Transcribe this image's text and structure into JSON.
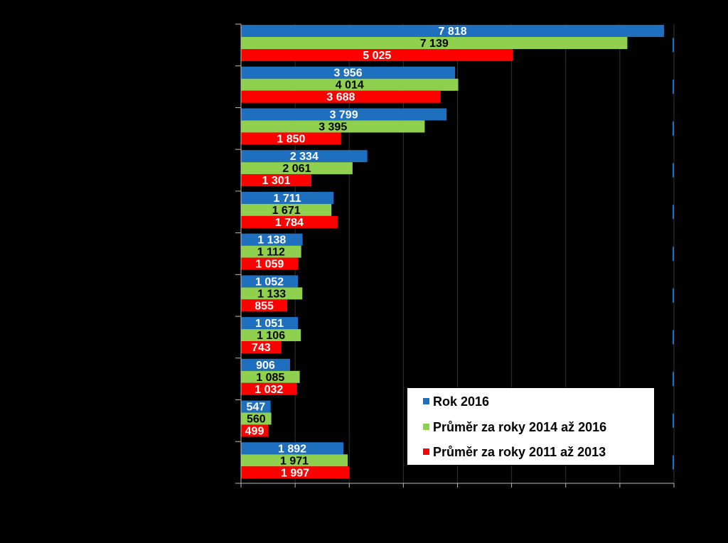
{
  "chart_data": {
    "type": "bar",
    "orientation": "horizontal",
    "categories": [
      "",
      "",
      "",
      "",
      "",
      "",
      "",
      "",
      "",
      "",
      ""
    ],
    "series": [
      {
        "name": "Rok 2016",
        "color": "#1f6fbf",
        "label_color": "#ffffff",
        "values": [
          7818,
          3956,
          3799,
          2334,
          1711,
          1138,
          1052,
          1051,
          906,
          547,
          1892
        ],
        "labels": [
          "7 818",
          "3 956",
          "3 799",
          "2 334",
          "1 711",
          "1 138",
          "1 052",
          "1 051",
          "906",
          "547",
          "1 892"
        ]
      },
      {
        "name": "Průměr za roky 2014 až 2016",
        "color": "#8fd14f",
        "label_color": "#000000",
        "values": [
          7139,
          4014,
          3395,
          2061,
          1671,
          1112,
          1133,
          1106,
          1085,
          560,
          1971
        ],
        "labels": [
          "7 139",
          "4 014",
          "3 395",
          "2 061",
          "1 671",
          "1 112",
          "1 133",
          "1 106",
          "1 085",
          "560",
          "1 971"
        ]
      },
      {
        "name": "Průměr za roky 2011 až 2013",
        "color": "#ff0000",
        "label_color": "#ffffff",
        "values": [
          5025,
          3688,
          1850,
          1301,
          1784,
          1059,
          855,
          743,
          1032,
          499,
          1997
        ],
        "labels": [
          "5 025",
          "3 688",
          "1 850",
          "1 301",
          "1 784",
          "1 059",
          "855",
          "743",
          "1 032",
          "499",
          "1 997"
        ]
      }
    ],
    "xlim": [
      0,
      8000
    ],
    "x_gridline_step": 1000,
    "grid": true,
    "legend_position": "bottom-right",
    "background": "#000000"
  }
}
